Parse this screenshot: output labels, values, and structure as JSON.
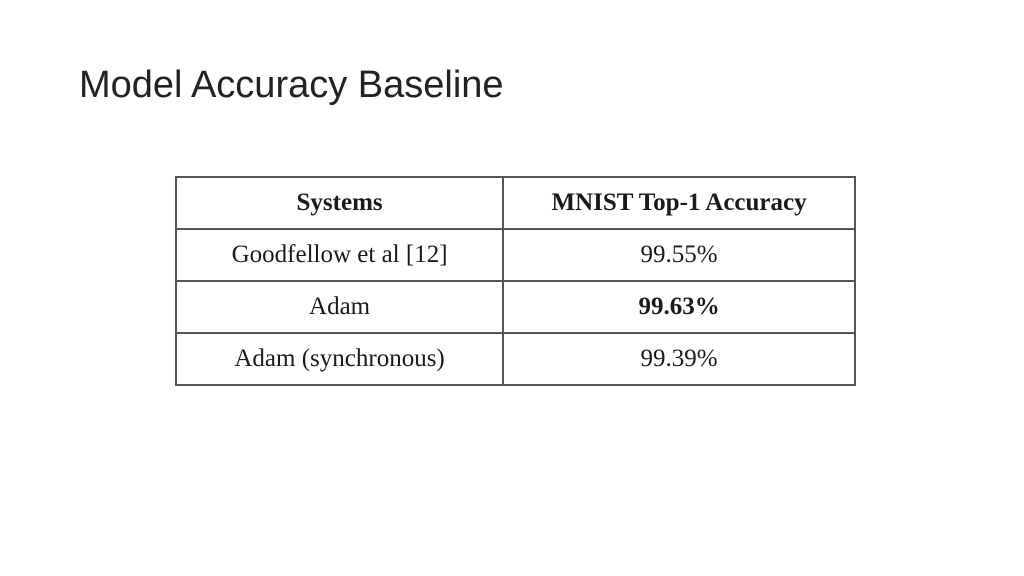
{
  "slide": {
    "title": "Model Accuracy Baseline"
  },
  "table": {
    "headers": {
      "system": "Systems",
      "accuracy": "MNIST Top-1 Accuracy"
    },
    "rows": [
      {
        "system": "Goodfellow et al [12]",
        "accuracy": "99.55%",
        "highlight": false
      },
      {
        "system": "Adam",
        "accuracy": "99.63%",
        "highlight": true
      },
      {
        "system": "Adam (synchronous)",
        "accuracy": "99.39%",
        "highlight": false
      }
    ]
  }
}
